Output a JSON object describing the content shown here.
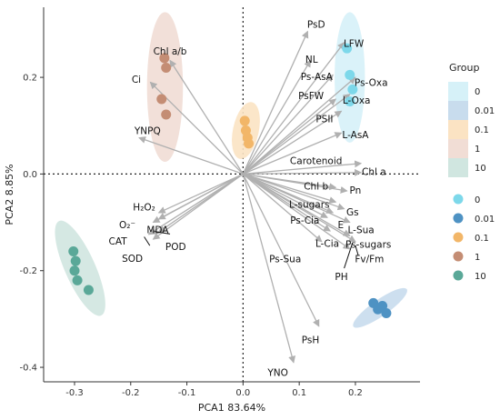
{
  "chart_data": {
    "type": "scatter",
    "xlabel": "PCA1 83.64%",
    "ylabel": "PCA2 8.85%",
    "xlim": [
      -0.355,
      0.315
    ],
    "ylim": [
      -0.43,
      0.345
    ],
    "x_ticks": [
      "-0.3",
      "-0.2",
      "-0.1",
      "0.0",
      "0.1",
      "0.2"
    ],
    "x_tick_values": [
      -0.3,
      -0.2,
      -0.1,
      0.0,
      0.1,
      0.2
    ],
    "y_ticks": [
      "-0.4",
      "-0.2",
      "0.0",
      "0.2"
    ],
    "y_tick_values": [
      -0.4,
      -0.2,
      0.0,
      0.2
    ],
    "grid": false,
    "reference_lines": [
      0,
      0
    ],
    "legend": {
      "title": "Group",
      "placement": "right",
      "entries": [
        "0",
        "0.01",
        "0.1",
        "1",
        "10"
      ]
    },
    "groups": [
      {
        "name": "0",
        "color": "#7dd8ea",
        "fill": "#d6f1f8",
        "points": [
          [
            0.185,
            0.26
          ],
          [
            0.19,
            0.205
          ],
          [
            0.195,
            0.175
          ],
          [
            0.19,
            0.15
          ]
        ],
        "ellipse": {
          "cx": 0.19,
          "cy": 0.2,
          "rx": 0.027,
          "ry": 0.135,
          "angle": 0
        }
      },
      {
        "name": "0.01",
        "color": "#4e92c3",
        "fill": "#c8dced",
        "points": [
          [
            0.232,
            -0.267
          ],
          [
            0.24,
            -0.28
          ],
          [
            0.248,
            -0.273
          ],
          [
            0.255,
            -0.288
          ]
        ],
        "ellipse": {
          "cx": 0.244,
          "cy": -0.277,
          "rx": 0.058,
          "ry": 0.017,
          "angle": -35
        }
      },
      {
        "name": "0.1",
        "color": "#f2b668",
        "fill": "#fbe3c3",
        "points": [
          [
            0.003,
            0.11
          ],
          [
            0.005,
            0.09
          ],
          [
            0.008,
            0.075
          ],
          [
            0.01,
            0.063
          ]
        ],
        "ellipse": {
          "cx": 0.005,
          "cy": 0.09,
          "rx": 0.023,
          "ry": 0.06,
          "angle": 12
        }
      },
      {
        "name": "1",
        "color": "#c48d74",
        "fill": "#f1ddd5",
        "points": [
          [
            -0.14,
            0.24
          ],
          [
            -0.137,
            0.22
          ],
          [
            -0.145,
            0.155
          ],
          [
            -0.137,
            0.123
          ]
        ],
        "ellipse": {
          "cx": -0.139,
          "cy": 0.18,
          "rx": 0.032,
          "ry": 0.155,
          "angle": 0
        }
      },
      {
        "name": "10",
        "color": "#5aa898",
        "fill": "#d0e6e0",
        "points": [
          [
            -0.302,
            -0.16
          ],
          [
            -0.298,
            -0.18
          ],
          [
            -0.3,
            -0.2
          ],
          [
            -0.295,
            -0.22
          ],
          [
            -0.275,
            -0.24
          ]
        ],
        "ellipse": {
          "cx": -0.29,
          "cy": -0.195,
          "rx": 0.027,
          "ry": 0.107,
          "angle": -24
        }
      }
    ],
    "loadings": [
      {
        "name": "PsD",
        "x": 0.115,
        "y": 0.295,
        "lx": 0.13,
        "ly": 0.31
      },
      {
        "name": "LFW",
        "x": 0.18,
        "y": 0.272,
        "lx": 0.197,
        "ly": 0.271
      },
      {
        "name": "NL",
        "x": 0.12,
        "y": 0.235,
        "lx": 0.122,
        "ly": 0.238
      },
      {
        "name": "Ps-AsA",
        "x": 0.16,
        "y": 0.205,
        "lx": 0.131,
        "ly": 0.202
      },
      {
        "name": "Ps-Oxa",
        "x": 0.2,
        "y": 0.2,
        "lx": 0.228,
        "ly": 0.19
      },
      {
        "name": "PsFW",
        "x": 0.165,
        "y": 0.155,
        "lx": 0.121,
        "ly": 0.163
      },
      {
        "name": "L-Oxa",
        "x": 0.19,
        "y": 0.165,
        "lx": 0.202,
        "ly": 0.153
      },
      {
        "name": "PSII",
        "x": 0.175,
        "y": 0.13,
        "lx": 0.145,
        "ly": 0.115
      },
      {
        "name": "L-AsA",
        "x": 0.175,
        "y": 0.085,
        "lx": 0.2,
        "ly": 0.082
      },
      {
        "name": "Carotenoid",
        "x": 0.21,
        "y": 0.022,
        "lx": 0.13,
        "ly": 0.028
      },
      {
        "name": "Chl a",
        "x": 0.21,
        "y": 0.003,
        "lx": 0.233,
        "ly": 0.005
      },
      {
        "name": "Chl b",
        "x": 0.165,
        "y": -0.028,
        "lx": 0.13,
        "ly": -0.025
      },
      {
        "name": "Pn",
        "x": 0.185,
        "y": -0.035,
        "lx": 0.2,
        "ly": -0.033
      },
      {
        "name": "L-sugars",
        "x": 0.165,
        "y": -0.058,
        "lx": 0.118,
        "ly": -0.062
      },
      {
        "name": "Gs",
        "x": 0.18,
        "y": -0.072,
        "lx": 0.195,
        "ly": -0.078
      },
      {
        "name": "Ps-Cia",
        "x": 0.16,
        "y": -0.08,
        "lx": 0.11,
        "ly": -0.095
      },
      {
        "name": "E",
        "x": 0.15,
        "y": -0.09,
        "lx": 0.174,
        "ly": -0.105
      },
      {
        "name": "L-Sua",
        "x": 0.19,
        "y": -0.1,
        "lx": 0.21,
        "ly": -0.115
      },
      {
        "name": "L-Cia",
        "x": 0.155,
        "y": -0.118,
        "lx": 0.15,
        "ly": -0.143
      },
      {
        "name": "Ps-sugars",
        "x": 0.19,
        "y": -0.128,
        "lx": 0.223,
        "ly": -0.145
      },
      {
        "name": "Fv/Fm",
        "x": 0.2,
        "y": -0.14,
        "lx": 0.225,
        "ly": -0.175
      },
      {
        "name": "Ps-Sua",
        "x": 0.14,
        "y": -0.14,
        "lx": 0.075,
        "ly": -0.175
      },
      {
        "name": "PH",
        "x": 0.19,
        "y": -0.155,
        "lx": 0.175,
        "ly": -0.212
      },
      {
        "name": "PsH",
        "x": 0.135,
        "y": -0.315,
        "lx": 0.12,
        "ly": -0.343
      },
      {
        "name": "YNO",
        "x": 0.09,
        "y": -0.39,
        "lx": 0.062,
        "ly": -0.41
      },
      {
        "name": "Chl a/b",
        "x": -0.13,
        "y": 0.235,
        "lx": -0.13,
        "ly": 0.255
      },
      {
        "name": "Ci",
        "x": -0.165,
        "y": 0.19,
        "lx": -0.19,
        "ly": 0.196
      },
      {
        "name": "YNPQ",
        "x": -0.185,
        "y": 0.075,
        "lx": -0.17,
        "ly": 0.09
      },
      {
        "name": "H₂O₂",
        "x": -0.15,
        "y": -0.08,
        "lx": -0.176,
        "ly": -0.068
      },
      {
        "name": "MDA",
        "x": -0.15,
        "y": -0.093,
        "lx": -0.152,
        "ly": -0.115
      },
      {
        "name": "O₂⁻",
        "x": -0.16,
        "y": -0.1,
        "lx": -0.206,
        "ly": -0.105
      },
      {
        "name": "POD",
        "x": -0.15,
        "y": -0.12,
        "lx": -0.12,
        "ly": -0.15
      },
      {
        "name": "CAT",
        "x": -0.168,
        "y": -0.125,
        "lx": -0.223,
        "ly": -0.138
      },
      {
        "name": "SOD",
        "x": -0.16,
        "y": -0.135,
        "lx": -0.197,
        "ly": -0.174
      }
    ],
    "callout_lines": [
      {
        "from": [
          -0.176,
          -0.13
        ],
        "to": [
          -0.166,
          -0.148
        ]
      },
      {
        "from": [
          -0.158,
          -0.119
        ],
        "to": [
          -0.13,
          -0.124
        ]
      },
      {
        "from": [
          0.2,
          -0.148
        ],
        "to": [
          0.205,
          -0.168
        ]
      },
      {
        "from": [
          0.195,
          -0.142
        ],
        "to": [
          0.18,
          -0.195
        ]
      }
    ]
  }
}
